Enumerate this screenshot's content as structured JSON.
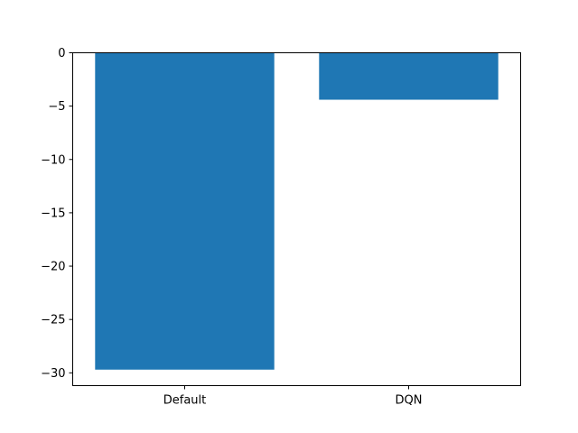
{
  "chart_data": {
    "type": "bar",
    "title": "",
    "xlabel": "",
    "ylabel": "",
    "categories": [
      "Default",
      "DQN"
    ],
    "values": [
      -29.7,
      -4.4
    ],
    "ylim": [
      -31.2,
      0
    ],
    "yticks": [
      0,
      -5,
      -10,
      -15,
      -20,
      -25,
      -30
    ],
    "ytick_labels": [
      "0",
      "−5",
      "−10",
      "−15",
      "−20",
      "−25",
      "−30"
    ],
    "bar_color": "#1f77b4",
    "grid": false,
    "legend": "none"
  }
}
